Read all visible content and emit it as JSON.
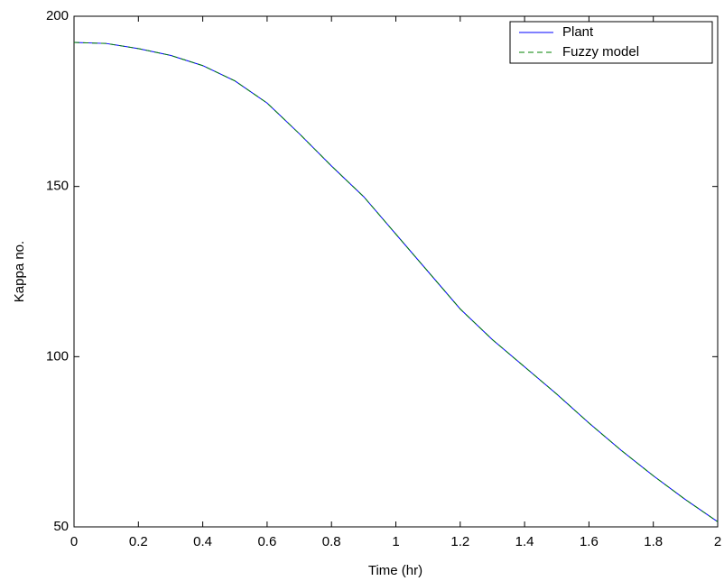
{
  "chart_data": {
    "type": "line",
    "xlabel": "Time  (hr)",
    "ylabel": "Kappa no.",
    "x": [
      0,
      0.1,
      0.2,
      0.3,
      0.4,
      0.5,
      0.6,
      0.7,
      0.8,
      0.9,
      1,
      1.1,
      1.2,
      1.3,
      1.4,
      1.5,
      1.6,
      1.7,
      1.8,
      1.9,
      2
    ],
    "series": [
      {
        "name": "Plant",
        "color": "#0000ff",
        "dash": "solid",
        "values": [
          192.3,
          192,
          190.5,
          188.5,
          185.5,
          181,
          174.5,
          165.5,
          156,
          147,
          136,
          125,
          114,
          105,
          97,
          89,
          80.5,
          72.5,
          65,
          58,
          51.5
        ]
      },
      {
        "name": "Fuzzy model",
        "color": "#008000",
        "dash": "dashed",
        "values": [
          192.3,
          192,
          190.5,
          188.5,
          185.5,
          181,
          174.5,
          165.5,
          156,
          147,
          136,
          125,
          114,
          105,
          97,
          89,
          80.5,
          72.5,
          65,
          58,
          51.5
        ]
      }
    ],
    "xlim": [
      0,
      2
    ],
    "xticks": [
      0,
      0.2,
      0.4,
      0.6,
      0.8,
      1,
      1.2,
      1.4,
      1.6,
      1.8,
      2
    ],
    "ylim": [
      50,
      200
    ],
    "yticks": [
      50,
      100,
      150,
      200
    ],
    "grid": false,
    "legend": "upper right"
  }
}
